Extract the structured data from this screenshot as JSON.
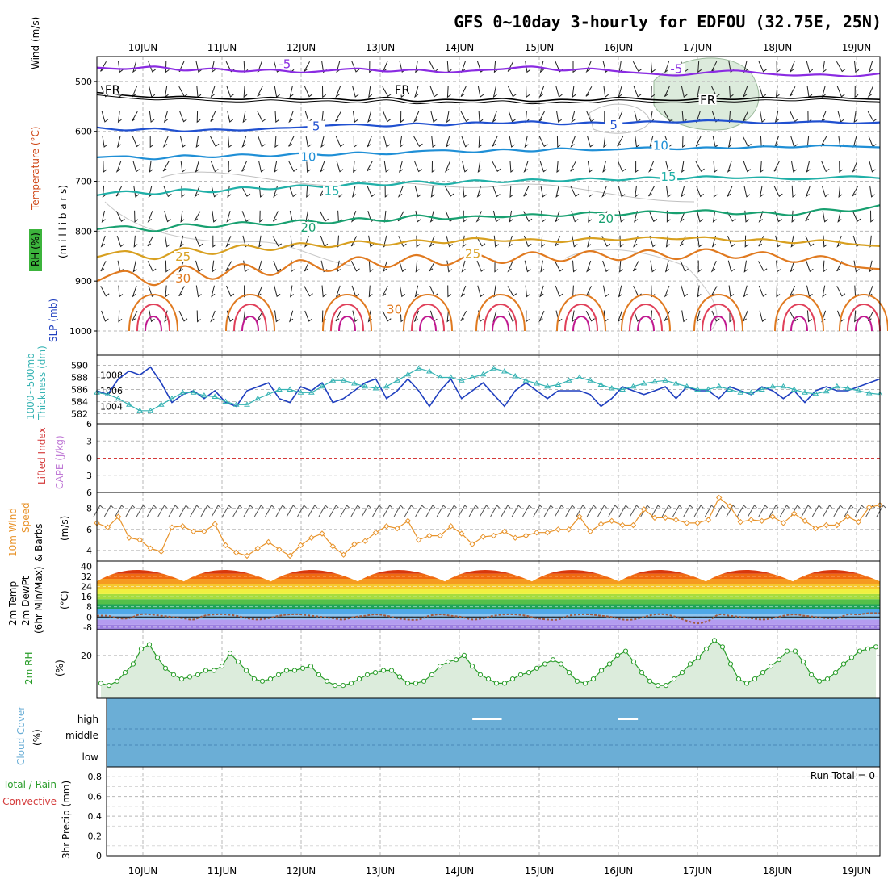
{
  "title": "GFS 0~10day 3-hourly for EDFOU (32.75E, 25N)",
  "dates": [
    "10JUN",
    "11JUN",
    "12JUN",
    "13JUN",
    "14JUN",
    "15JUN",
    "16JUN",
    "17JUN",
    "18JUN",
    "19JUN"
  ],
  "colors": {
    "grid": "#b8b8b8",
    "rh_green": "#2a9d2a",
    "rh_fill": "#dcecdc",
    "slp": "#1f3fbf",
    "thickness": "#36b3b3",
    "lifted": "#d43a3a",
    "cape": "#c07ad6",
    "wind": "#e8932a",
    "cloud": "#6baed6",
    "dewpt": "#a05a40"
  },
  "chart_data": [
    {
      "panel": "upper-air",
      "type": "contour",
      "ylabel_parts": [
        "Wind (m/s)",
        "Temperature (°C)",
        "RH (%)",
        "(m i l l i b a r s)"
      ],
      "y_ticks": [
        "500",
        "600",
        "700",
        "800",
        "900",
        "1000"
      ],
      "ylim": [
        450,
        1000
      ],
      "levels": [
        {
          "label": "-5",
          "color": "#8a2be2",
          "p": [
            472,
            475,
            470,
            478,
            474,
            480,
            476,
            482,
            478,
            474,
            480,
            476,
            482,
            478,
            475,
            470,
            478,
            474,
            480,
            484,
            488,
            482,
            478,
            484,
            488,
            486,
            490,
            484
          ]
        },
        {
          "label": "FR",
          "color": "#000000",
          "p": [
            522,
            528,
            532,
            530,
            534,
            536,
            532,
            536,
            534,
            538,
            532,
            540,
            536,
            538,
            534,
            540,
            536,
            538,
            532,
            536,
            538,
            534,
            536,
            532,
            534,
            530,
            534,
            536
          ]
        },
        {
          "label": "5",
          "color": "#2050d0",
          "p": [
            592,
            598,
            594,
            600,
            596,
            598,
            594,
            592,
            588,
            586,
            590,
            584,
            588,
            582,
            584,
            580,
            586,
            582,
            584,
            580,
            582,
            578,
            580,
            584,
            582,
            580,
            584,
            582
          ]
        },
        {
          "label": "10",
          "color": "#1f8fd6",
          "p": [
            652,
            650,
            656,
            648,
            652,
            646,
            650,
            644,
            648,
            642,
            646,
            640,
            638,
            642,
            636,
            640,
            634,
            638,
            636,
            632,
            636,
            632,
            634,
            630,
            632,
            628,
            630,
            632
          ]
        },
        {
          "label": "15",
          "color": "#20b0a8",
          "p": [
            728,
            720,
            726,
            716,
            722,
            712,
            716,
            708,
            712,
            704,
            708,
            700,
            706,
            698,
            702,
            696,
            700,
            694,
            698,
            692,
            696,
            690,
            694,
            692,
            696,
            694,
            690,
            694
          ]
        },
        {
          "label": "20",
          "color": "#18a070",
          "p": [
            796,
            790,
            800,
            786,
            792,
            782,
            788,
            778,
            784,
            774,
            780,
            768,
            776,
            770,
            772,
            766,
            770,
            762,
            768,
            760,
            764,
            758,
            766,
            762,
            768,
            756,
            760,
            748
          ]
        },
        {
          "label": "25",
          "color": "#d8a020",
          "p": [
            852,
            840,
            856,
            834,
            846,
            828,
            838,
            824,
            832,
            820,
            828,
            818,
            824,
            814,
            820,
            816,
            822,
            814,
            818,
            812,
            816,
            812,
            820,
            816,
            824,
            818,
            826,
            830
          ]
        },
        {
          "label": "30",
          "color": "#e07a20",
          "p": [
            900,
            880,
            908,
            870,
            896,
            866,
            888,
            858,
            880,
            852,
            872,
            848,
            868,
            846,
            864,
            842,
            860,
            840,
            858,
            838,
            856,
            836,
            854,
            842,
            862,
            850,
            870,
            876
          ]
        }
      ],
      "labels": [
        {
          "text": "-5",
          "x": 0.24,
          "p": 470
        },
        {
          "text": "-5",
          "x": 0.74,
          "p": 480
        },
        {
          "text": "FR",
          "x": 0.02,
          "p": 522
        },
        {
          "text": "FR",
          "x": 0.39,
          "p": 522
        },
        {
          "text": "FR",
          "x": 0.78,
          "p": 542
        },
        {
          "text": "5",
          "x": 0.28,
          "p": 595
        },
        {
          "text": "5",
          "x": 0.66,
          "p": 592
        },
        {
          "text": "10",
          "x": 0.27,
          "p": 656
        },
        {
          "text": "10",
          "x": 0.72,
          "p": 634
        },
        {
          "text": "15",
          "x": 0.3,
          "p": 724
        },
        {
          "text": "15",
          "x": 0.73,
          "p": 696
        },
        {
          "text": "20",
          "x": 0.27,
          "p": 798
        },
        {
          "text": "20",
          "x": 0.65,
          "p": 780
        },
        {
          "text": "25",
          "x": 0.11,
          "p": 856
        },
        {
          "text": "25",
          "x": 0.48,
          "p": 850
        },
        {
          "text": "30",
          "x": 0.11,
          "p": 900
        },
        {
          "text": "30",
          "x": 0.38,
          "p": 962
        }
      ]
    },
    {
      "panel": "slp-thickness",
      "type": "line",
      "ylabels": [
        "1000~500mb",
        "Thickness (dm)",
        "SLP (mb)"
      ],
      "left_ticks": [
        "590",
        "588",
        "586",
        "584",
        "582"
      ],
      "right_ticks": [
        "1008",
        "1006",
        "1004"
      ],
      "series": [
        {
          "key": "slp",
          "values": [
            1006,
            1005.5,
            1007.5,
            1008.5,
            1008,
            1009,
            1007,
            1004.5,
            1005.5,
            1006,
            1005,
            1006,
            1004.5,
            1004,
            1006,
            1006.5,
            1007,
            1005,
            1004.5,
            1006.5,
            1006,
            1007,
            1004.5,
            1005,
            1006,
            1007,
            1007.5,
            1005,
            1006,
            1007.5,
            1006,
            1004,
            1006,
            1007.5,
            1005,
            1006,
            1007,
            1005.5,
            1004,
            1006,
            1007,
            1006,
            1005,
            1006,
            1006,
            1006,
            1005.5,
            1004,
            1005,
            1006.5,
            1006,
            1005.5,
            1006,
            1006.5,
            1005,
            1006.5,
            1006,
            1006,
            1005,
            1006.5,
            1006,
            1005.5,
            1006.5,
            1006,
            1005,
            1006,
            1004.5,
            1006,
            1006.5,
            1006,
            1006,
            1006.5,
            1007,
            1007.5
          ]
        },
        {
          "key": "thickness",
          "values": [
            585.5,
            585.2,
            584.5,
            583.5,
            582.5,
            582.5,
            583.5,
            584.5,
            585.5,
            585.5,
            585,
            584.8,
            584,
            583.5,
            583.5,
            584.5,
            585.2,
            586,
            586,
            585.5,
            585.5,
            586.5,
            587.5,
            587.5,
            587,
            586.5,
            586.2,
            586.5,
            587.5,
            588.5,
            589.5,
            589,
            588,
            588,
            587.5,
            588,
            588.5,
            589.5,
            589,
            588.2,
            587.5,
            587,
            586.5,
            586.8,
            587.5,
            588,
            587.5,
            586.8,
            586.2,
            586,
            586.5,
            587,
            587.3,
            587.5,
            587,
            586.5,
            586,
            586,
            586.5,
            586,
            585.5,
            585.5,
            586,
            586.5,
            586.5,
            586,
            585.5,
            585.3,
            585.7,
            586.5,
            586.2,
            585.8,
            585.4,
            585.2
          ]
        }
      ]
    },
    {
      "panel": "lifted-cape",
      "type": "line",
      "ylabels": [
        "Lifted Index",
        "CAPE (J/kg)"
      ],
      "y_ticks": [
        "6",
        "3",
        "0",
        "3",
        "6"
      ],
      "lifted_index": [],
      "cape": []
    },
    {
      "panel": "10m-wind",
      "type": "line",
      "ylabels": [
        "10m Wind",
        "Speed",
        "& Barbs",
        "(m/s)"
      ],
      "y_ticks": [
        "8",
        "6",
        "4"
      ],
      "ylim": [
        3,
        9.5
      ],
      "series": [
        {
          "key": "wind",
          "values": [
            6.6,
            6.2,
            7.2,
            5.2,
            5.0,
            4.2,
            3.9,
            6.2,
            6.3,
            5.8,
            5.8,
            6.5,
            4.5,
            3.8,
            3.5,
            4.2,
            4.8,
            4.1,
            3.5,
            4.5,
            5.2,
            5.6,
            4.4,
            3.6,
            4.6,
            4.9,
            5.7,
            6.3,
            6.1,
            6.8,
            5.0,
            5.4,
            5.4,
            6.3,
            5.6,
            4.6,
            5.3,
            5.4,
            5.8,
            5.2,
            5.4,
            5.7,
            5.7,
            6.0,
            6.0,
            7.2,
            5.8,
            6.5,
            6.8,
            6.4,
            6.4,
            7.9,
            7.1,
            7.1,
            6.9,
            6.6,
            6.6,
            6.9,
            9.0,
            8.2,
            6.7,
            6.9,
            6.8,
            7.2,
            6.6,
            7.5,
            6.8,
            6.1,
            6.4,
            6.4,
            7.2,
            6.7,
            8.1,
            8.3
          ]
        }
      ]
    },
    {
      "panel": "2m-temp",
      "type": "area",
      "ylabels": [
        "2m Temp",
        "2m DewPt",
        "(6hr Min/Max)",
        "(°C)"
      ],
      "y_ticks": [
        "40",
        "32",
        "24",
        "16",
        "8",
        "0",
        "-8"
      ],
      "ylim": [
        -10,
        44
      ],
      "temp_max": 40,
      "temp_min": 28,
      "dewpoint": [
        1,
        1,
        -1,
        -1,
        2,
        2,
        1,
        0,
        -1,
        -2,
        1,
        2,
        2,
        1,
        -1,
        -2,
        -1,
        1,
        2,
        2,
        1,
        0,
        -1,
        -2,
        0,
        1,
        2,
        1,
        -1,
        -2,
        -2,
        1,
        2,
        1,
        0,
        -2,
        -1,
        1,
        2,
        2,
        1,
        -1,
        -2,
        -2,
        1,
        2,
        2,
        1,
        0,
        -2,
        -2,
        0,
        2,
        2,
        0,
        -3,
        -5,
        -3,
        2,
        1,
        0,
        -1,
        -2,
        -1,
        1,
        2,
        1,
        0,
        -1,
        -1,
        2,
        2,
        3,
        3
      ]
    },
    {
      "panel": "2m-rh",
      "type": "area",
      "ylabels": [
        "2m RH",
        "(%)"
      ],
      "y_ticks": [
        "20"
      ],
      "ylim": [
        0,
        32
      ],
      "series": [
        {
          "key": "rh",
          "values": [
            7,
            6,
            8,
            12,
            16,
            23,
            25,
            19,
            14,
            11,
            9,
            10,
            11,
            13,
            13,
            15,
            21,
            17,
            13,
            9,
            8,
            9,
            11,
            13,
            13,
            14,
            15,
            11,
            8,
            6,
            6,
            7,
            9,
            11,
            12,
            13,
            13,
            10,
            7,
            7,
            8,
            11,
            15,
            17,
            18,
            20,
            15,
            11,
            9,
            7,
            7,
            9,
            11,
            12,
            14,
            16,
            18,
            16,
            12,
            8,
            7,
            9,
            13,
            16,
            20,
            22,
            17,
            12,
            8,
            6,
            6,
            9,
            12,
            16,
            19,
            23,
            27,
            24,
            16,
            9,
            7,
            9,
            12,
            15,
            18,
            22,
            22,
            17,
            11,
            8,
            9,
            12,
            16,
            19,
            22,
            23,
            24
          ]
        }
      ]
    },
    {
      "panel": "cloud-cover",
      "type": "heatmap",
      "ylabels": [
        "Cloud Cover",
        "(%)"
      ],
      "y_ticks": [
        "high",
        "middle",
        "low"
      ],
      "gaps": [
        {
          "layer": "high",
          "start": 0.473,
          "end": 0.511
        },
        {
          "layer": "high",
          "start": 0.661,
          "end": 0.687
        }
      ]
    },
    {
      "panel": "precip",
      "type": "bar",
      "ylabels": [
        "Total / Rain",
        "Convective",
        "3hr Precip (mm)"
      ],
      "y_ticks": [
        "0.8",
        "0.6",
        "0.4",
        "0.2",
        "0"
      ],
      "ylim": [
        0,
        0.9
      ],
      "run_total": "Run Total = 0",
      "values": []
    }
  ]
}
